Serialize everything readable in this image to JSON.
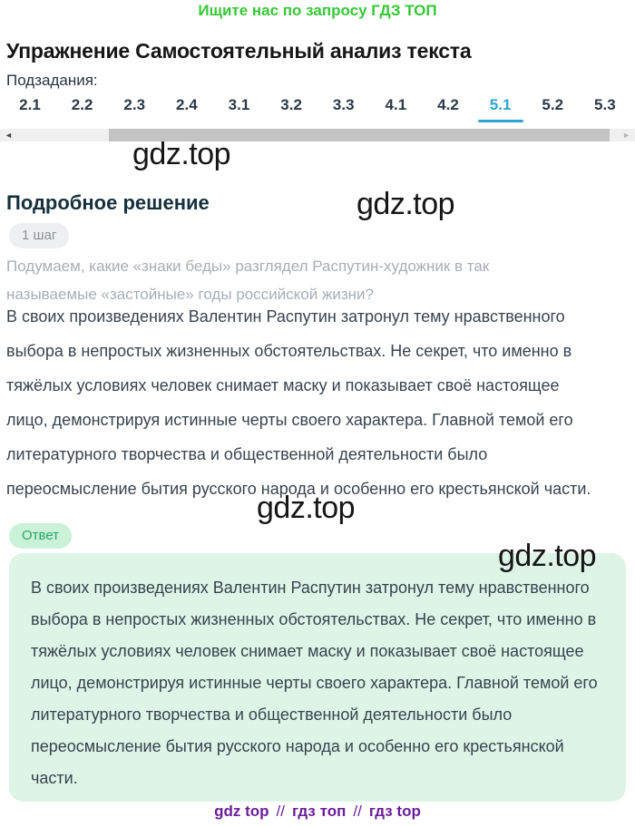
{
  "promo": {
    "text": "Ищите нас по запросу ГДЗ ТОП"
  },
  "page": {
    "title": "Упражнение Самостоятельный анализ текста",
    "subtasks_label": "Подзадания:",
    "solution_heading": "Подробное решение"
  },
  "tabs": {
    "items": [
      {
        "label": "2.1"
      },
      {
        "label": "2.2"
      },
      {
        "label": "2.3"
      },
      {
        "label": "2.4"
      },
      {
        "label": "3.1"
      },
      {
        "label": "3.2"
      },
      {
        "label": "3.3"
      },
      {
        "label": "4.1"
      },
      {
        "label": "4.2"
      },
      {
        "label": "5.1"
      },
      {
        "label": "5.2"
      },
      {
        "label": "5.3"
      }
    ],
    "active": "5.1"
  },
  "scrollbar": {
    "left_arrow_icon": "◄",
    "right_arrow_icon": "►"
  },
  "watermark": {
    "text": "gdz.top"
  },
  "step": {
    "badge": "1 шаг",
    "question": "Подумаем, какие «знаки беды» разглядел Распутин-художник в так называемые «застойные» годы российской жизни?",
    "body": "В своих произведениях Валентин Распутин затронул тему нравственного выбора в непростых жизненных обстоятельствах. Не секрет, что именно в тяжёлых условиях человек снимает маску и показывает своё настоящее лицо, демонстрируя истинные черты своего характера. Главной темой его литературного творчества и общественной деятельности было переосмысление бытия русского народа и особенно его крестьянской части."
  },
  "answer": {
    "badge": "Ответ",
    "text": "В своих произведениях Валентин Распутин затронул тему нравственного выбора в непростых жизненных обстоятельствах. Не секрет, что именно в тяжёлых условиях человек снимает маску и показывает своё настоящее лицо, демонстрируя истинные черты своего характера. Главной темой его литературного творчества и общественной деятельности было переосмысление бытия русского народа и особенно его крестьянской части."
  },
  "footer": {
    "links": [
      "gdz top",
      "гдз топ",
      "гдз top"
    ],
    "separator": "//"
  },
  "colors": {
    "promo_green": "#35c835",
    "accent_blue": "#2aa3d3",
    "answer_box_bg": "#ddf4e6",
    "answer_badge_bg": "#c9f2d9",
    "answer_badge_text": "#28a765",
    "step_badge_bg": "#edeff1",
    "step_badge_text": "#8b929b",
    "footer_purple": "#6b1e9b"
  }
}
